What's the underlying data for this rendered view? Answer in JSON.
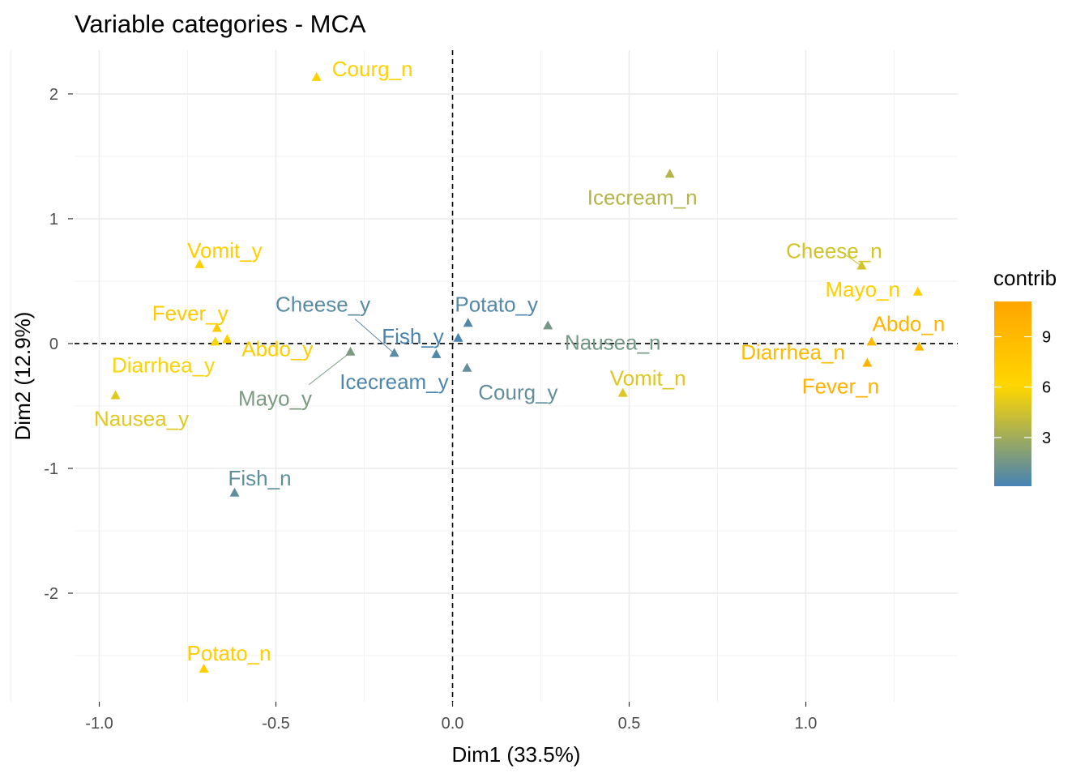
{
  "chart_data": {
    "type": "scatter",
    "title": "Variable categories - MCA",
    "xlabel": "Dim1 (33.5%)",
    "ylabel": "Dim2 (12.9%)",
    "xlim": [
      -1.07,
      1.43
    ],
    "ylim": [
      -2.87,
      2.35
    ],
    "x_ticks": [
      -1.0,
      -0.5,
      0.0,
      0.5,
      1.0
    ],
    "x_tick_labels": [
      "-1.0",
      "-0.5",
      "0.0",
      "0.5",
      "1.0"
    ],
    "y_ticks": [
      -2,
      -1,
      0,
      1,
      2
    ],
    "y_tick_labels": [
      "-2",
      "-1",
      "0",
      "1",
      "2"
    ],
    "grid": true,
    "legend": {
      "title": "contrib",
      "placement": "right",
      "range": [
        0.1,
        11.1
      ],
      "ticks": [
        3,
        6,
        9
      ],
      "tick_labels": [
        "3",
        "6",
        "9"
      ],
      "colors": {
        "low": "#4682B4",
        "mid": "#FFD700",
        "high": "#FFA500"
      },
      "midpoint": 6
    },
    "points": [
      {
        "label": "Courg_n",
        "x": -0.385,
        "y": 2.13,
        "contrib": 6.6
      },
      {
        "label": "Icecream_n",
        "x": 0.615,
        "y": 1.355,
        "contrib": 3.6
      },
      {
        "label": "Vomit_y",
        "x": -0.716,
        "y": 0.63,
        "contrib": 6.8
      },
      {
        "label": "Cheese_n",
        "x": 1.158,
        "y": 0.62,
        "contrib": 4.6
      },
      {
        "label": "Mayo_n",
        "x": 1.317,
        "y": 0.41,
        "contrib": 6.8
      },
      {
        "label": "Fever_y",
        "x": -0.667,
        "y": 0.12,
        "contrib": 7.2
      },
      {
        "label": "Abdo_y",
        "x": -0.638,
        "y": 0.03,
        "contrib": 6.9
      },
      {
        "label": "Diarrhea_y",
        "x": -0.672,
        "y": 0.01,
        "contrib": 5.8
      },
      {
        "label": "Potato_y",
        "x": 0.044,
        "y": 0.16,
        "contrib": 0.5
      },
      {
        "label": "Nausea_n",
        "x": 0.27,
        "y": 0.14,
        "contrib": 1.6
      },
      {
        "label": "Fish_y",
        "x": 0.016,
        "y": 0.04,
        "contrib": 0.2
      },
      {
        "label": "Mayo_y",
        "x": -0.289,
        "y": -0.07,
        "contrib": 1.8
      },
      {
        "label": "Cheese_y",
        "x": -0.165,
        "y": -0.08,
        "contrib": 0.7
      },
      {
        "label": "Icecream_y",
        "x": -0.046,
        "y": -0.09,
        "contrib": 0.4
      },
      {
        "label": "Courg_y",
        "x": 0.041,
        "y": -0.2,
        "contrib": 1.0
      },
      {
        "label": "Abdo_n",
        "x": 1.321,
        "y": -0.03,
        "contrib": 9.5
      },
      {
        "label": "Diarrhea_n",
        "x": 1.186,
        "y": 0.01,
        "contrib": 9.0
      },
      {
        "label": "Fever_n",
        "x": 1.174,
        "y": -0.16,
        "contrib": 9.8
      },
      {
        "label": "Vomit_n",
        "x": 0.482,
        "y": -0.4,
        "contrib": 4.9
      },
      {
        "label": "Nausea_y",
        "x": -0.954,
        "y": -0.42,
        "contrib": 5.0
      },
      {
        "label": "Fish_n",
        "x": -0.617,
        "y": -1.2,
        "contrib": 0.9
      },
      {
        "label": "Potato_n",
        "x": -0.704,
        "y": -2.61,
        "contrib": 7.0
      }
    ]
  }
}
